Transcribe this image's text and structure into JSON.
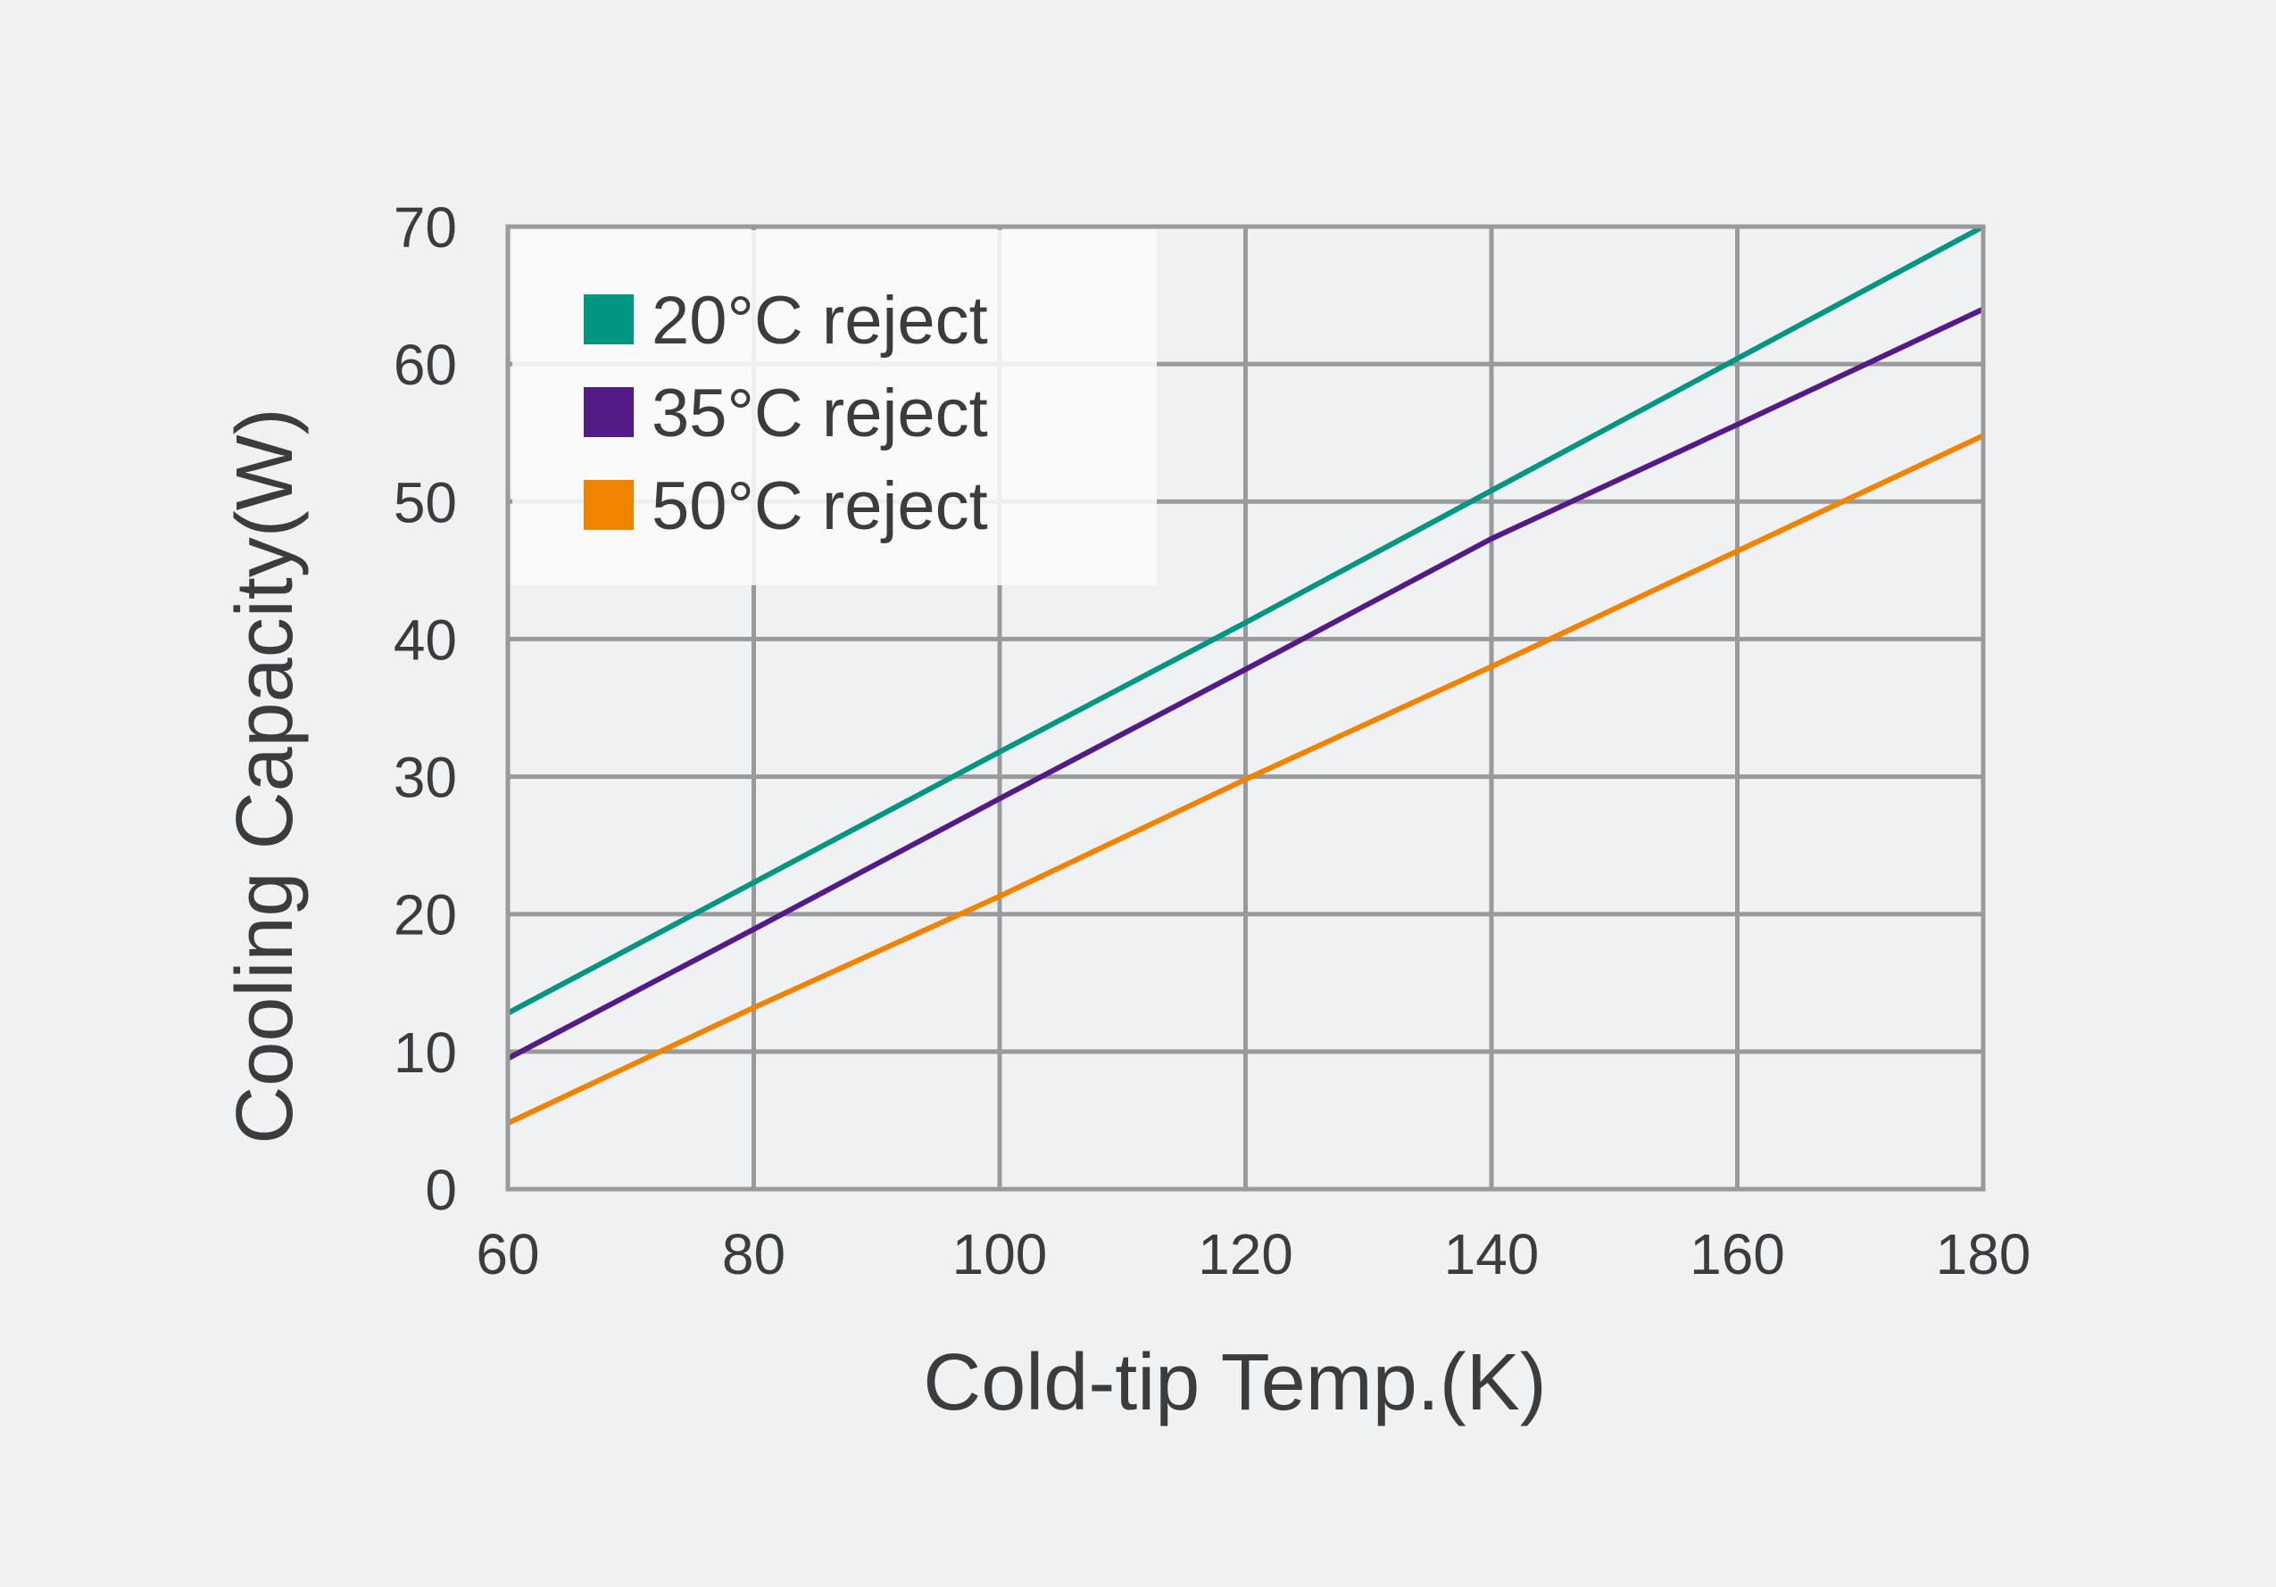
{
  "chart_data": {
    "type": "line",
    "title": "",
    "xlabel": "Cold-tip Temp.(K)",
    "ylabel": "Cooling Capacity(W)",
    "xlim": [
      60,
      180
    ],
    "ylim": [
      0,
      70
    ],
    "x_ticks": [
      60,
      80,
      100,
      120,
      140,
      160,
      180
    ],
    "y_ticks": [
      0,
      10,
      20,
      30,
      40,
      50,
      60,
      70
    ],
    "grid": true,
    "legend_position": "top-left",
    "series": [
      {
        "name": "20°C reject",
        "color": "#009682",
        "x": [
          60,
          80,
          100,
          120,
          140,
          160,
          180
        ],
        "y": [
          12.8,
          22.3,
          31.8,
          41.2,
          50.8,
          60.4,
          70.0
        ]
      },
      {
        "name": "35°C reject",
        "color": "#541b86",
        "x": [
          60,
          80,
          100,
          120,
          140,
          160,
          180
        ],
        "y": [
          9.5,
          18.9,
          28.4,
          37.8,
          47.3,
          55.6,
          64.0
        ]
      },
      {
        "name": "50°C reject",
        "color": "#f08300",
        "x": [
          60,
          80,
          100,
          120,
          140,
          160,
          180
        ],
        "y": [
          4.8,
          13.2,
          21.3,
          29.8,
          38.0,
          46.4,
          54.8
        ]
      }
    ]
  },
  "colors": {
    "background": "#f0f1f3",
    "grid": "#9a9a9a",
    "text": "#3c3c3c",
    "legend_box": "#fafafa"
  }
}
